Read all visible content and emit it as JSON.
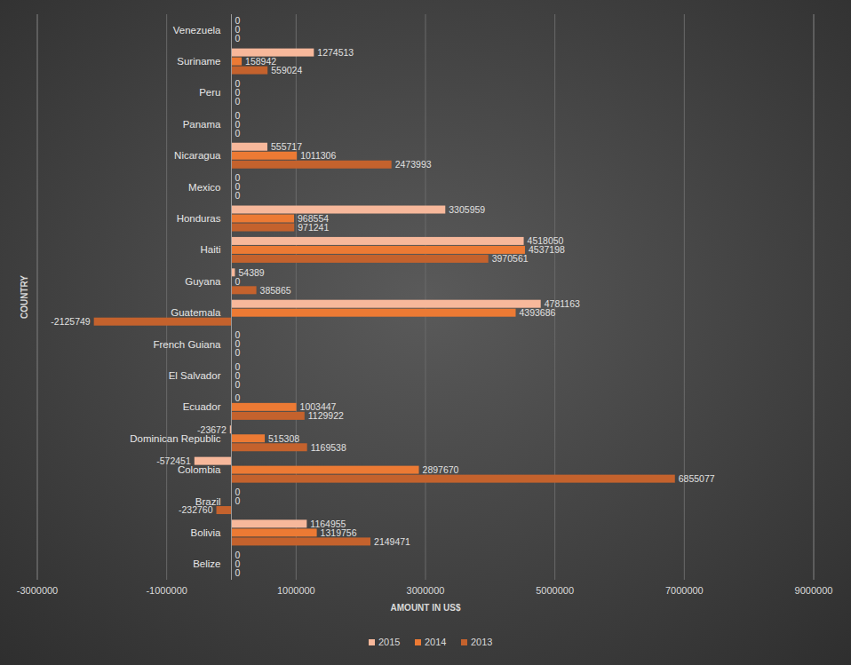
{
  "chart_data": {
    "type": "bar",
    "orientation": "horizontal",
    "x_label": "AMOUNT IN US$",
    "y_label": "COUNTRY",
    "categories": [
      "Belize",
      "Bolivia",
      "Brazil",
      "Colombia",
      "Dominican Republic",
      "Ecuador",
      "El Salvador",
      "French Guiana",
      "Guatemala",
      "Guyana",
      "Haiti",
      "Honduras",
      "Mexico",
      "Nicaragua",
      "Panama",
      "Peru",
      "Suriname",
      "Venezuela"
    ],
    "series": [
      {
        "name": "2015",
        "color": "#f7b89b",
        "values": [
          0,
          1164955,
          0,
          -572451,
          -23672,
          0,
          0,
          0,
          4781163,
          54389,
          4518050,
          3305959,
          0,
          555717,
          0,
          0,
          1274513,
          0
        ]
      },
      {
        "name": "2014",
        "color": "#ec7a34",
        "values": [
          0,
          1319756,
          0,
          2897670,
          515308,
          1003447,
          0,
          0,
          4393686,
          0,
          4537198,
          968554,
          0,
          1011306,
          0,
          0,
          158942,
          0
        ]
      },
      {
        "name": "2013",
        "color": "#c4622d",
        "values": [
          0,
          2149471,
          -232760,
          6855077,
          1169538,
          1129922,
          0,
          0,
          -2125749,
          385865,
          3970561,
          971241,
          0,
          2473993,
          0,
          0,
          559024,
          0
        ]
      }
    ],
    "xlim": [
      -3000000,
      9000000
    ],
    "xticks": [
      -3000000,
      -1000000,
      1000000,
      3000000,
      5000000,
      7000000,
      9000000
    ],
    "grid": true,
    "legend": "bottom",
    "data_labels": true
  }
}
